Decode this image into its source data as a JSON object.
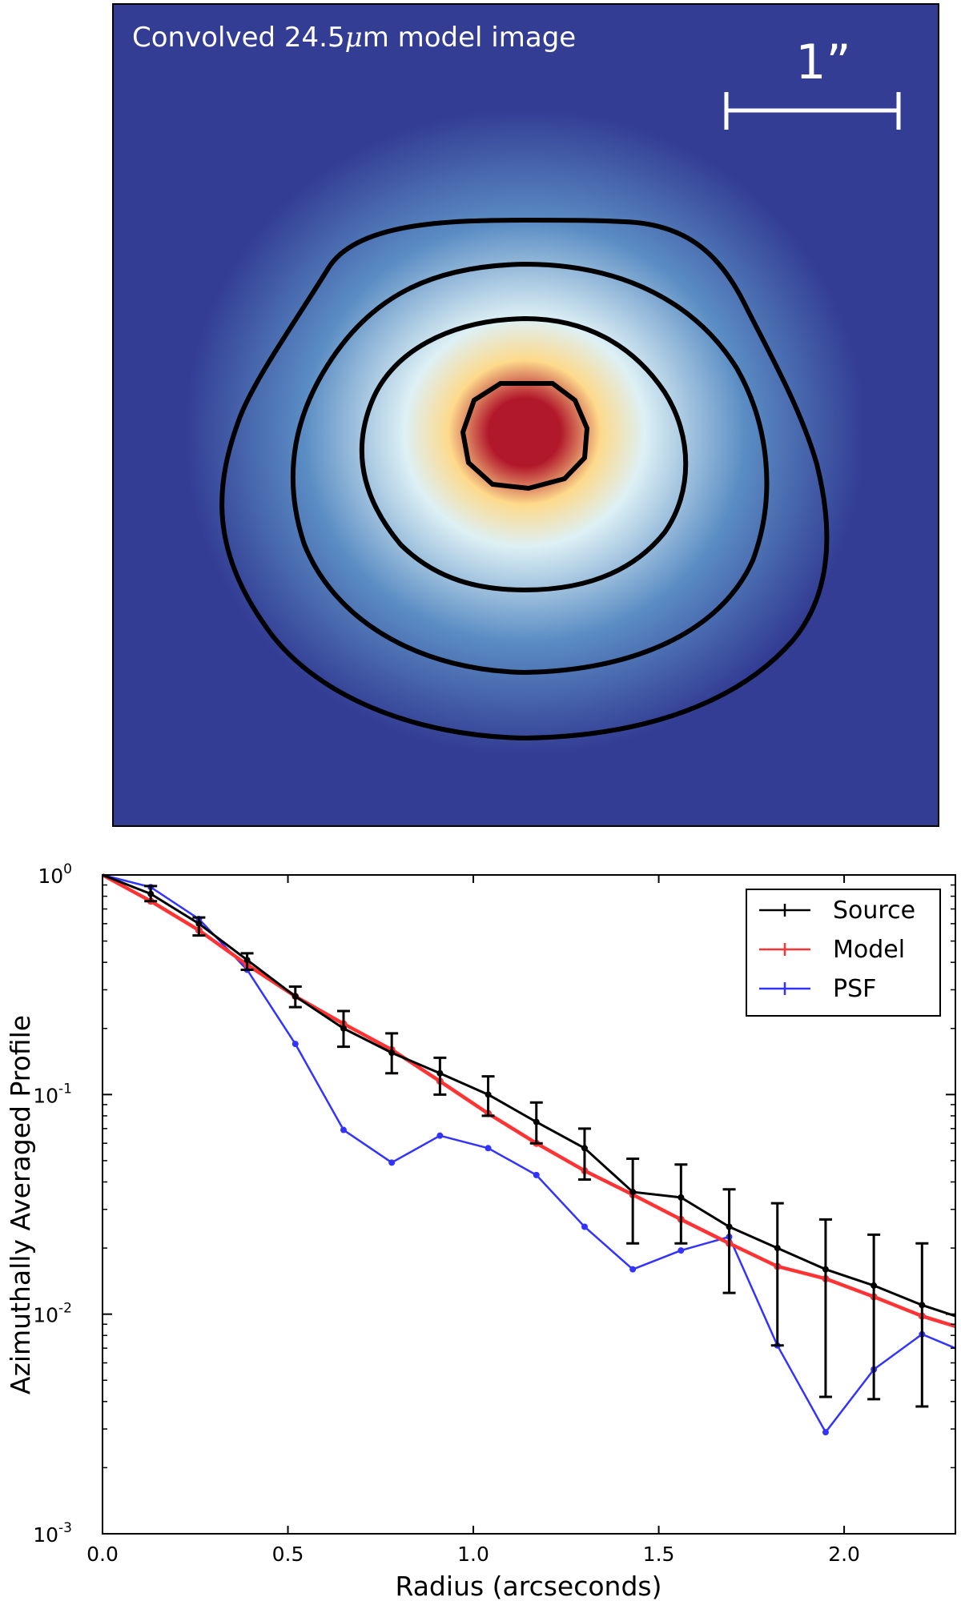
{
  "image_panel": {
    "caption_prefix": "Convolved 24.5",
    "caption_mu": "μ",
    "caption_suffix": "m model image",
    "scale_bar_label": "1”",
    "colors": {
      "background": "#333d94",
      "contour": "#000000",
      "peak": "#b2182b",
      "mid": "#fdda8c",
      "light": "#ddf0f5",
      "outer": "#5b8dc4"
    }
  },
  "chart_data": {
    "type": "line",
    "xlabel": "Radius (arcseconds)",
    "ylabel": "Azimuthally Averaged Profile",
    "xlim": [
      0.0,
      2.3
    ],
    "ylim": [
      0.001,
      1.0
    ],
    "yscale": "log",
    "xticks": [
      {
        "value": 0.0,
        "label": "0.0"
      },
      {
        "value": 0.5,
        "label": "0.5"
      },
      {
        "value": 1.0,
        "label": "1.0"
      },
      {
        "value": 1.5,
        "label": "1.5"
      },
      {
        "value": 2.0,
        "label": "2.0"
      }
    ],
    "yticks": [
      {
        "value": 1.0,
        "base": "10",
        "exp": "0"
      },
      {
        "value": 0.1,
        "base": "10",
        "exp": "-1"
      },
      {
        "value": 0.01,
        "base": "10",
        "exp": "-2"
      },
      {
        "value": 0.001,
        "base": "10",
        "exp": "-3"
      }
    ],
    "legend_position": "top-right",
    "series": [
      {
        "name": "Source",
        "color": "#000000",
        "x": [
          0.0,
          0.13,
          0.26,
          0.39,
          0.52,
          0.65,
          0.78,
          0.91,
          1.04,
          1.17,
          1.3,
          1.43,
          1.56,
          1.69,
          1.82,
          1.95,
          2.08,
          2.21,
          2.3
        ],
        "y": [
          1.0,
          0.82,
          0.6,
          0.41,
          0.28,
          0.2,
          0.155,
          0.125,
          0.1,
          0.075,
          0.057,
          0.036,
          0.034,
          0.025,
          0.02,
          0.016,
          0.0135,
          0.011,
          0.0098
        ],
        "yerr_low": [
          null,
          0.76,
          0.53,
          0.37,
          0.25,
          0.165,
          0.125,
          0.1,
          0.08,
          0.06,
          0.041,
          0.021,
          0.021,
          0.0125,
          0.0072,
          0.0042,
          0.0041,
          0.0038,
          null
        ],
        "yerr_high": [
          null,
          0.89,
          0.64,
          0.44,
          0.31,
          0.24,
          0.19,
          0.147,
          0.121,
          0.092,
          0.07,
          0.051,
          0.048,
          0.037,
          0.032,
          0.027,
          0.023,
          0.021,
          null
        ]
      },
      {
        "name": "Model",
        "color": "#ff3333",
        "x": [
          0.0,
          0.13,
          0.26,
          0.39,
          0.52,
          0.65,
          0.78,
          0.91,
          1.04,
          1.17,
          1.3,
          1.43,
          1.56,
          1.69,
          1.82,
          1.95,
          2.08,
          2.21,
          2.3
        ],
        "y": [
          1.0,
          0.76,
          0.56,
          0.39,
          0.28,
          0.21,
          0.16,
          0.115,
          0.082,
          0.06,
          0.045,
          0.035,
          0.027,
          0.021,
          0.0165,
          0.0145,
          0.012,
          0.0098,
          0.0088
        ]
      },
      {
        "name": "PSF",
        "color": "#3333ff",
        "x": [
          0.0,
          0.13,
          0.26,
          0.39,
          0.52,
          0.65,
          0.78,
          0.91,
          1.04,
          1.17,
          1.3,
          1.43,
          1.56,
          1.69,
          1.82,
          1.95,
          2.08,
          2.21,
          2.3
        ],
        "y": [
          1.0,
          0.88,
          0.63,
          0.37,
          0.17,
          0.069,
          0.049,
          0.065,
          0.057,
          0.043,
          0.025,
          0.016,
          0.0195,
          0.0225,
          0.0072,
          0.0029,
          0.0056,
          0.0081,
          0.007
        ]
      }
    ]
  }
}
